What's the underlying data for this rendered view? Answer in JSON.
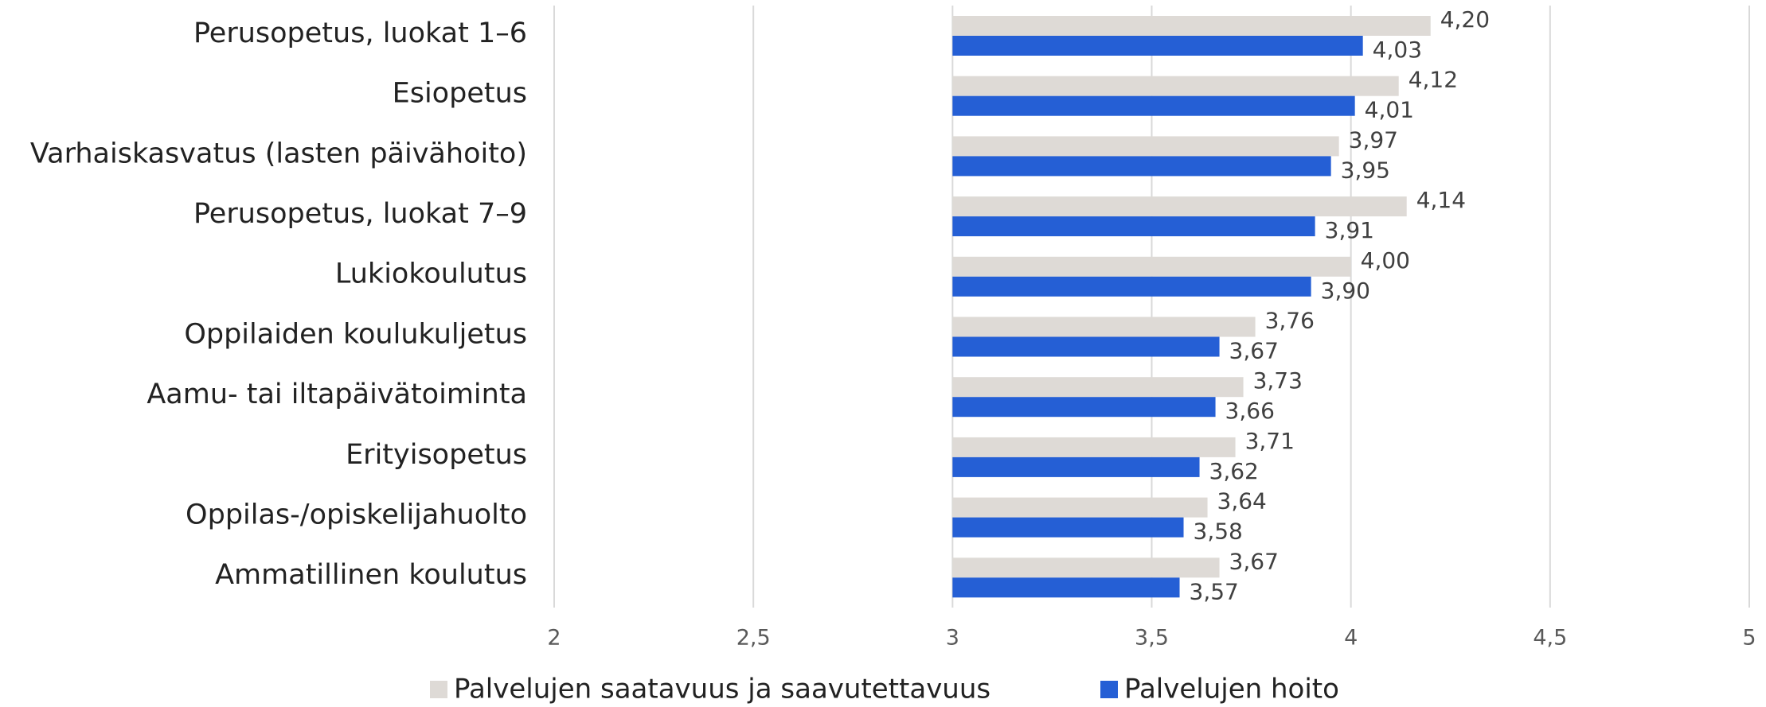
{
  "chart_data": {
    "type": "hbar",
    "categories": [
      "Perusopetus, luokat 1–6",
      "Esiopetus",
      "Varhaiskasvatus (lasten päivähoito)",
      "Perusopetus, luokat 7–9",
      "Lukiokoulutus",
      "Oppilaiden koulukuljetus",
      "Aamu- tai iltapäivätoiminta",
      "Erityisopetus",
      "Oppilas-/opiskelijahuolto",
      "Ammatillinen koulutus"
    ],
    "series": [
      {
        "name": "Palvelujen saatavuus ja saavutettavuus",
        "color": "#dedad6",
        "values": [
          4.2,
          4.12,
          3.97,
          4.14,
          4.0,
          3.76,
          3.73,
          3.71,
          3.64,
          3.67
        ],
        "value_labels": [
          "4,20",
          "4,12",
          "3,97",
          "4,14",
          "4,00",
          "3,76",
          "3,73",
          "3,71",
          "3,64",
          "3,67"
        ]
      },
      {
        "name": "Palvelujen hoito",
        "color": "#255fd5",
        "values": [
          4.03,
          4.01,
          3.95,
          3.91,
          3.9,
          3.67,
          3.66,
          3.62,
          3.58,
          3.57
        ],
        "value_labels": [
          "4,03",
          "4,01",
          "3,95",
          "3,91",
          "3,90",
          "3,67",
          "3,66",
          "3,62",
          "3,58",
          "3,57"
        ]
      }
    ],
    "xlim": [
      2,
      5
    ],
    "xticks": [
      2,
      {
        "value": 2.5,
        "label": "2,5"
      },
      3,
      {
        "value": 3.5,
        "label": "3,5"
      },
      4,
      {
        "value": 4.5,
        "label": "4,5"
      },
      5
    ],
    "axis_crosses": 3,
    "grid": true,
    "legend": "bottom"
  }
}
